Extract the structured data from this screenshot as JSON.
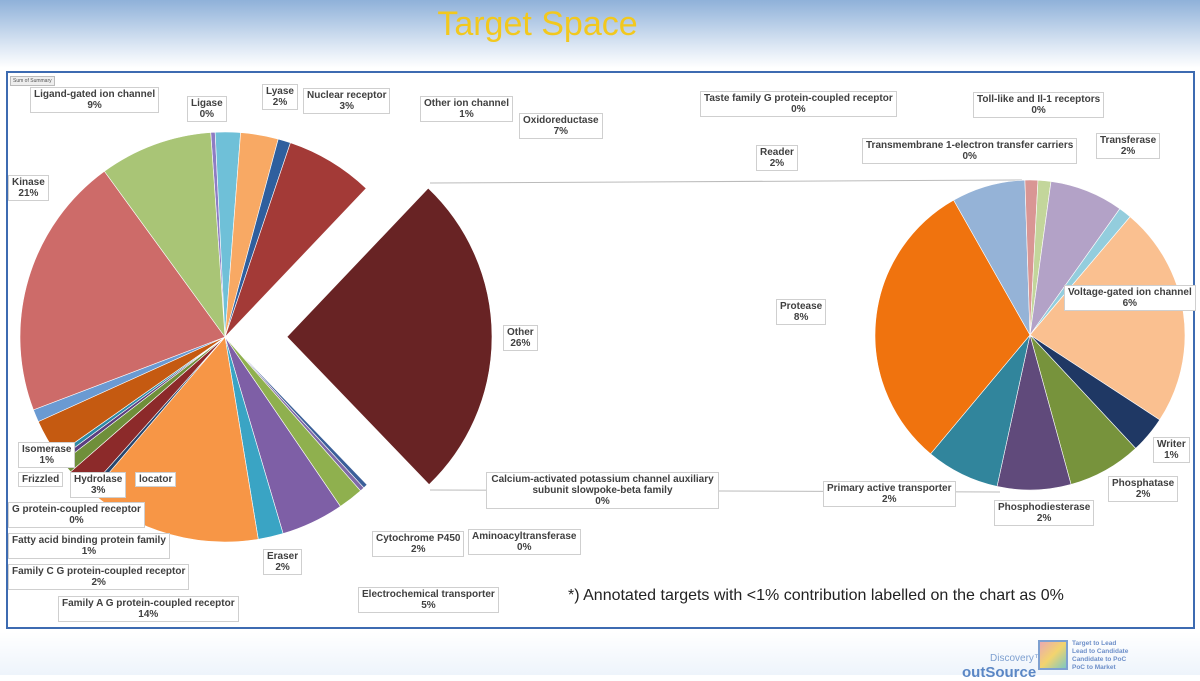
{
  "header": {
    "title": "Target Space"
  },
  "sum_tag": "Sum of Summary",
  "note": "*) Annotated targets with <1% contribution labelled on the chart as 0%",
  "footer": {
    "brand_top": "Discovery™",
    "brand": "outSource",
    "tagline": [
      "Target to Lead",
      "Lead to Candidate",
      "Candidate to PoC",
      "PoC to Market"
    ]
  },
  "chart_data": {
    "type": "pie-of-pie",
    "main": {
      "slices": [
        {
          "label": "Ligase",
          "pct": "0%",
          "value": 0,
          "color": "#8e7cc3"
        },
        {
          "label": "Lyase",
          "pct": "2%",
          "value": 2,
          "color": "#6fc0d8"
        },
        {
          "label": "Nuclear receptor",
          "pct": "3%",
          "value": 3,
          "color": "#f8a964"
        },
        {
          "label": "Other ion channel",
          "pct": "1%",
          "value": 1,
          "color": "#2f5f9e"
        },
        {
          "label": "Oxidoreductase",
          "pct": "7%",
          "value": 7,
          "color": "#a33a37"
        },
        {
          "label": "Other",
          "pct": "26%",
          "value": 26,
          "color": "#682324"
        },
        {
          "label": "Calcium-activated potassium channel auxiliary subunit slowpoke-beta family",
          "pct": "0%",
          "value": 0,
          "color": "#3b5f99"
        },
        {
          "label": "Aminoacyltransferase",
          "pct": "0%",
          "value": 0,
          "color": "#7f6aa8"
        },
        {
          "label": "Cytochrome P450",
          "pct": "2%",
          "value": 2,
          "color": "#8fb04e"
        },
        {
          "label": "Electrochemical transporter",
          "pct": "5%",
          "value": 5,
          "color": "#7e5fa6"
        },
        {
          "label": "Eraser",
          "pct": "2%",
          "value": 2,
          "color": "#3aa4c4"
        },
        {
          "label": "Family A G protein-coupled receptor",
          "pct": "14%",
          "value": 14,
          "color": "#f79646"
        },
        {
          "label": "G protein-coupled receptor",
          "pct": "0%",
          "value": 0,
          "color": "#27466e"
        },
        {
          "label": "Family C G protein-coupled receptor",
          "pct": "2%",
          "value": 2,
          "color": "#8c2a2a"
        },
        {
          "label": "Fatty acid binding protein family",
          "pct": "1%",
          "value": 1,
          "color": "#6f8f3a"
        },
        {
          "label": "locator",
          "pct": "",
          "value": 0,
          "color": "#5b3f80"
        },
        {
          "label": "Frizzled",
          "pct": "",
          "value": 0,
          "color": "#2d8aa6"
        },
        {
          "label": "Hydrolase",
          "pct": "3%",
          "value": 3,
          "color": "#c55a11"
        },
        {
          "label": "Isomerase",
          "pct": "1%",
          "value": 1,
          "color": "#6a9ad2"
        },
        {
          "label": "Kinase",
          "pct": "21%",
          "value": 21,
          "color": "#cd6b69"
        },
        {
          "label": "Ligand-gated ion channel",
          "pct": "9%",
          "value": 9,
          "color": "#a9c576"
        }
      ]
    },
    "secondary": {
      "of": "Other",
      "slices": [
        {
          "label": "Phosphatase",
          "pct": "2%",
          "value": 2,
          "color": "#77933c"
        },
        {
          "label": "Phosphodiesterase",
          "pct": "2%",
          "value": 2,
          "color": "#604a7b"
        },
        {
          "label": "Primary active transporter",
          "pct": "2%",
          "value": 2,
          "color": "#31859c"
        },
        {
          "label": "Protease",
          "pct": "8%",
          "value": 8,
          "color": "#f0730e"
        },
        {
          "label": "Reader",
          "pct": "2%",
          "value": 2,
          "color": "#95b3d7"
        },
        {
          "label": "Taste family G protein-coupled receptor",
          "pct": "0%",
          "value": 0,
          "color": "#d99694"
        },
        {
          "label": "Toll-like and Il-1 receptors",
          "pct": "0%",
          "value": 0,
          "color": "#c3d69b"
        },
        {
          "label": "Transferase",
          "pct": "2%",
          "value": 2,
          "color": "#b3a2c7"
        },
        {
          "label": "Transmembrane 1-electron transfer carriers",
          "pct": "0%",
          "value": 0,
          "color": "#93cddd"
        },
        {
          "label": "Voltage-gated ion channel",
          "pct": "6%",
          "value": 6,
          "color": "#fac090"
        },
        {
          "label": "Writer",
          "pct": "1%",
          "value": 1,
          "color": "#1f3864"
        }
      ]
    }
  }
}
